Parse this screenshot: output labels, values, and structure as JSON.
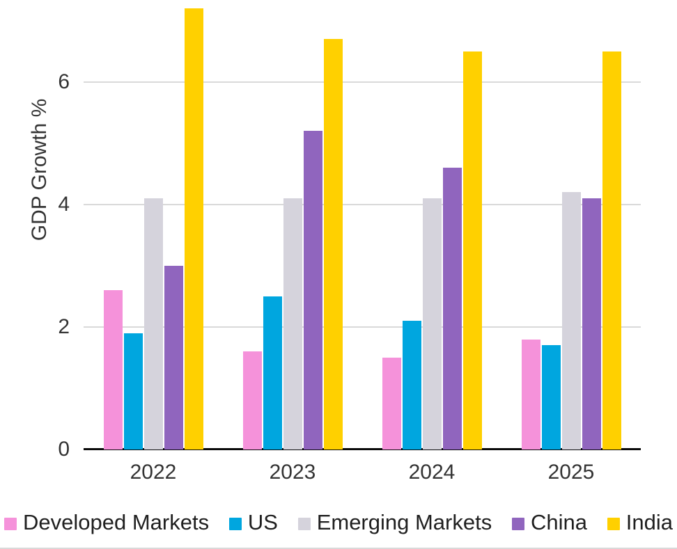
{
  "chart_data": {
    "type": "bar",
    "title": "",
    "xlabel": "",
    "ylabel": "GDP Growth %",
    "categories": [
      "2022",
      "2023",
      "2024",
      "2025"
    ],
    "series": [
      {
        "name": "Developed Markets",
        "color": "#F592DA",
        "values": [
          2.6,
          1.6,
          1.5,
          1.8
        ]
      },
      {
        "name": "US",
        "color": "#00A6DF",
        "values": [
          1.9,
          2.5,
          2.1,
          1.7
        ]
      },
      {
        "name": "Emerging Markets",
        "color": "#D5D3DC",
        "values": [
          4.1,
          4.1,
          4.1,
          4.2
        ]
      },
      {
        "name": "China",
        "color": "#9065BE",
        "values": [
          3.0,
          5.2,
          4.6,
          4.1
        ]
      },
      {
        "name": "India",
        "color": "#FFD000",
        "values": [
          7.2,
          6.7,
          6.5,
          6.5
        ]
      }
    ],
    "yticks": [
      0,
      2,
      4,
      6
    ],
    "ylim": [
      0,
      7.34
    ],
    "grid": true,
    "legend_position": "bottom",
    "colors": {
      "gridline": "#d9d9d9",
      "axis_line": "#0a0a0a",
      "text": "#333333",
      "background": "#ffffff"
    }
  }
}
